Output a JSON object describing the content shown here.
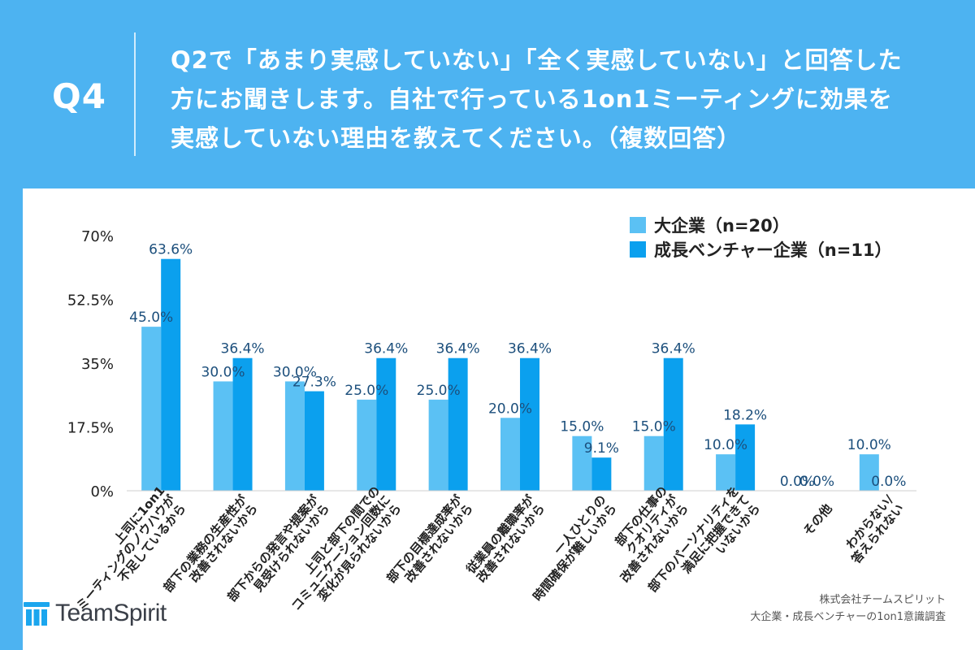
{
  "header": {
    "q_label": "Q4",
    "question_lines": [
      "Q2で「あまり実感していない」「全く実感していない」と回答した",
      "方にお聞きします。自社で行っている1on1ミーティングに効果を",
      "実感していない理由を教えてください。（複数回答）"
    ]
  },
  "colors": {
    "background": "#4db3f1",
    "series_large": "#5bc1f4",
    "series_venture": "#0ba0ee",
    "value_label": "#1c4f7c",
    "axis_text": "#222222"
  },
  "chart_data": {
    "type": "bar",
    "ylim": [
      0,
      70
    ],
    "yticks": [
      0,
      17.5,
      35,
      52.5,
      70
    ],
    "ytick_labels": [
      "0%",
      "17.5%",
      "35%",
      "52.5%",
      "70%"
    ],
    "legend_position": "top-right",
    "categories": [
      [
        "上司に1on1",
        "ミーティングのノウハウが",
        "不足しているから"
      ],
      [
        "部下の業務の生産性が",
        "改善されないから"
      ],
      [
        "部下からの発言や提案が",
        "見受けられないから"
      ],
      [
        "上司と部下の間での",
        "コミュニケーション回数に",
        "変化が見られないから"
      ],
      [
        "部下の目標達成率が",
        "改善されないから"
      ],
      [
        "従業員の離職率が",
        "改善されないから"
      ],
      [
        "一人ひとりの",
        "時間確保が難しいから"
      ],
      [
        "部下の仕事の",
        "クオリティが",
        "改善されないから"
      ],
      [
        "部下のパーソナリティを",
        "満足に把握できて",
        "いないから"
      ],
      [
        "その他"
      ],
      [
        "わからない/",
        "答えられない"
      ]
    ],
    "series": [
      {
        "name": "大企業（n=20）",
        "values": [
          45.0,
          30.0,
          30.0,
          25.0,
          25.0,
          20.0,
          15.0,
          15.0,
          10.0,
          0.0,
          10.0
        ],
        "labels": [
          "45.0%",
          "30.0%",
          "30.0%",
          "25.0%",
          "25.0%",
          "20.0%",
          "15.0%",
          "15.0%",
          "10.0%",
          "0.0%",
          "10.0%"
        ]
      },
      {
        "name": "成長ベンチャー企業（n=11）",
        "values": [
          63.6,
          36.4,
          27.3,
          36.4,
          36.4,
          36.4,
          9.1,
          36.4,
          18.2,
          0.0,
          0.0
        ],
        "labels": [
          "63.6%",
          "36.4%",
          "27.3%",
          "36.4%",
          "36.4%",
          "36.4%",
          "9.1%",
          "36.4%",
          "18.2%",
          "0.0%",
          "0.0%"
        ]
      }
    ]
  },
  "footer": {
    "credit_lines": [
      "株式会社チームスピリット",
      "大企業・成長ベンチャーの1on1意識調査"
    ],
    "logo_text": "TeamSpirit",
    "logo_icon": "teamspirit-logo-icon"
  }
}
